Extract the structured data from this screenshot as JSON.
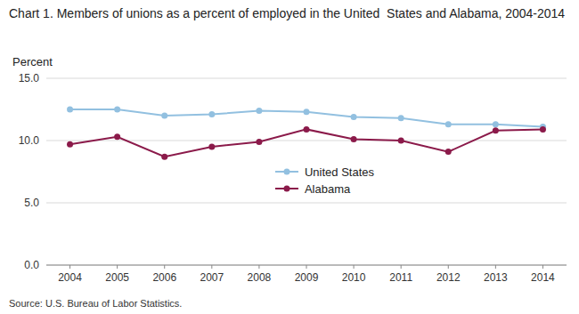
{
  "chart_data": {
    "type": "line",
    "title": "Chart 1. Members of unions as a percent of employed in the United  States and Alabama, 2004-2014",
    "ylabel": "Percent",
    "source": "Source: U.S. Bureau of Labor Statistics.",
    "x": [
      2004,
      2005,
      2006,
      2007,
      2008,
      2009,
      2010,
      2011,
      2012,
      2013,
      2014
    ],
    "xlim": [
      2003.5,
      2014.5
    ],
    "xticks": [
      2004,
      2005,
      2006,
      2007,
      2008,
      2009,
      2010,
      2011,
      2012,
      2013,
      2014
    ],
    "ylim": [
      0.0,
      15.0
    ],
    "yticks": [
      {
        "value": 0.0,
        "label": "0.0"
      },
      {
        "value": 5.0,
        "label": "5.0"
      },
      {
        "value": 10.0,
        "label": "10.0"
      },
      {
        "value": 15.0,
        "label": "15.0"
      }
    ],
    "grid": "y",
    "legend": "center",
    "series": [
      {
        "name": "United States",
        "color": "#92c0e0",
        "marker": "circle",
        "line_style": "solid",
        "values": [
          12.5,
          12.5,
          12.0,
          12.1,
          12.4,
          12.3,
          11.9,
          11.8,
          11.3,
          11.3,
          11.1
        ]
      },
      {
        "name": "Alabama",
        "color": "#8b1a4a",
        "marker": "circle",
        "line_style": "solid",
        "values": [
          9.7,
          10.3,
          8.7,
          9.5,
          9.9,
          10.9,
          10.1,
          10.0,
          9.1,
          10.8,
          10.9
        ]
      }
    ]
  }
}
